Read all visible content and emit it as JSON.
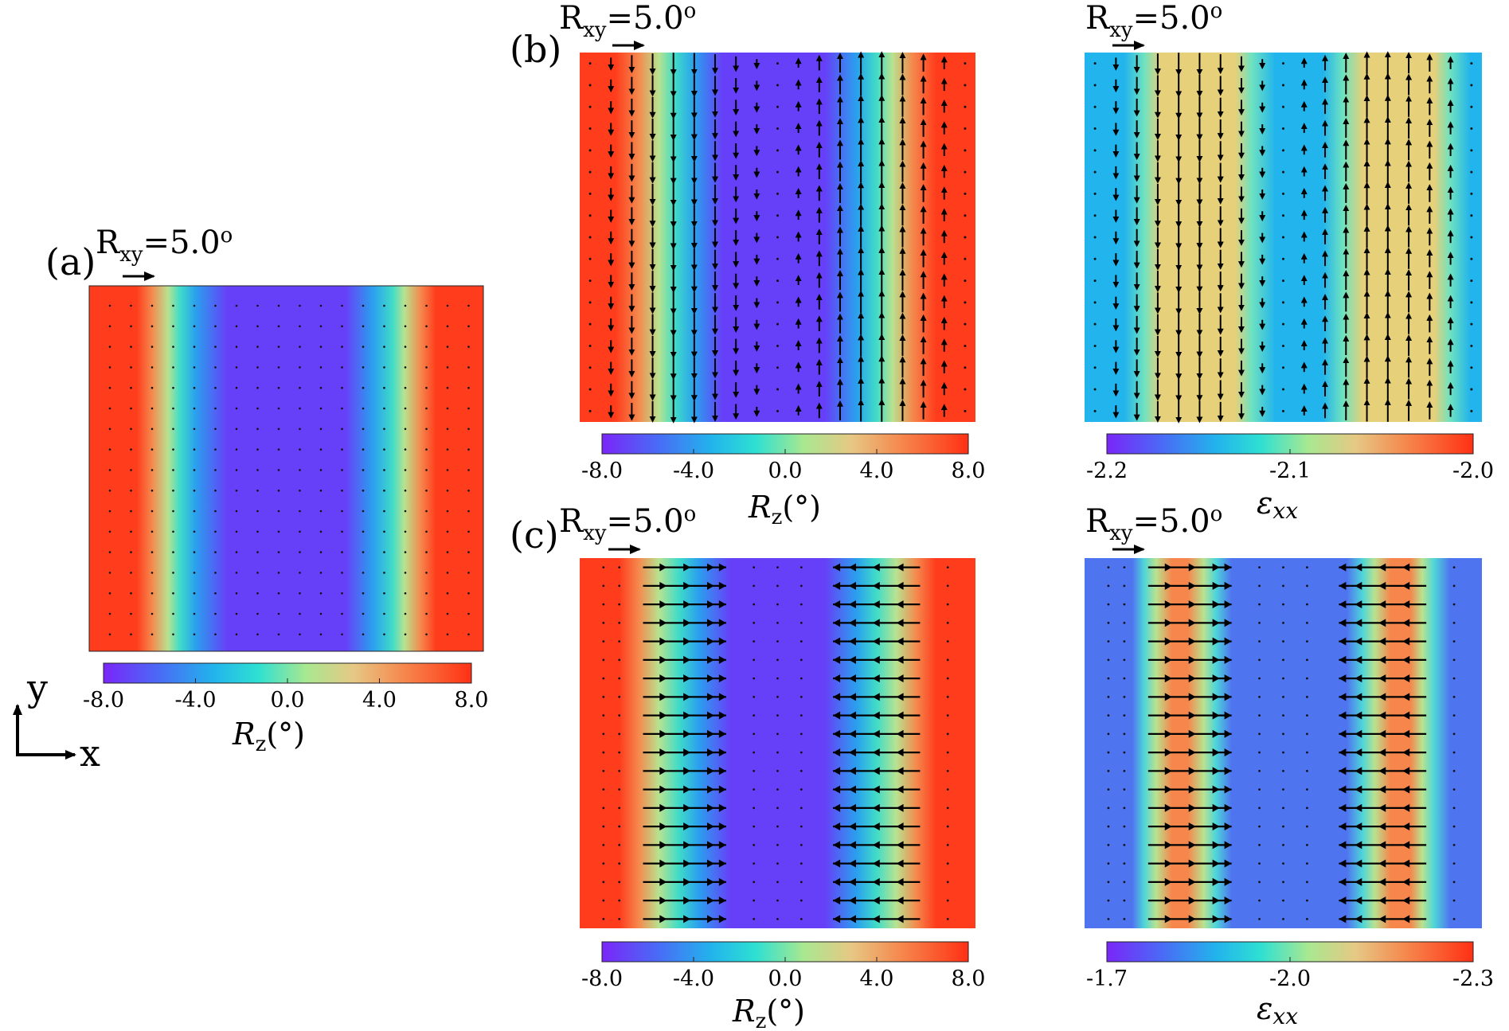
{
  "rotation_label": {
    "prefix": "R",
    "sub": "xy",
    "value": "=5.0",
    "sup": "o"
  },
  "panel_letters": {
    "a": "(a)",
    "b": "(b)",
    "c": "(c)"
  },
  "axes": {
    "y": "y",
    "x": "x"
  },
  "colorbars": {
    "rz_ticks": [
      "-8.0",
      "-4.0",
      "0.0",
      "4.0",
      "8.0"
    ],
    "rz_label": "Rz(°)",
    "exx_b_ticks": [
      "-2.2",
      "-2.1",
      "-2.0"
    ],
    "exx_c_ticks": [
      "-1.7",
      "-2.0",
      "-2.3"
    ],
    "exx_label": "εxx"
  },
  "colors": {
    "red": "#ff3c1c",
    "orange": "#f78a4a",
    "peach": "#f0ba86",
    "yellowgreen": "#a8e890",
    "cyan": "#44dcc8",
    "sky": "#22b4ec",
    "blue": "#3c8cf4",
    "purple": "#6640f8",
    "violet": "#7a26f8",
    "sand": "#e6d07a",
    "cornflower": "#4f74f0"
  },
  "chart_data": [
    {
      "type": "heatmap",
      "name": "panel-a",
      "field": "Rz",
      "units": "degrees",
      "range": [
        -8.0,
        8.0
      ],
      "profile_x": [
        0,
        0.12,
        0.2,
        0.26,
        0.35,
        0.65,
        0.74,
        0.8,
        0.88,
        1
      ],
      "profile_values": [
        8.0,
        8.0,
        2.5,
        -3.5,
        -8.0,
        -8.0,
        -3.5,
        2.5,
        8.0,
        8.0
      ],
      "vectors": "negligible (dots)"
    },
    {
      "type": "heatmap",
      "name": "panel-b-left",
      "field": "Rz",
      "units": "degrees",
      "range": [
        -8.0,
        8.0
      ],
      "profile_x": [
        0,
        0.1,
        0.2,
        0.27,
        0.36,
        0.62,
        0.71,
        0.79,
        0.88,
        1
      ],
      "profile_values": [
        8.0,
        8.0,
        2.5,
        -3.5,
        -8.0,
        -8.0,
        -3.5,
        2.5,
        8.0,
        8.0
      ],
      "vectors": "vertical; down on left half, up on right half"
    },
    {
      "type": "heatmap",
      "name": "panel-b-right",
      "field": "exx",
      "range": [
        -2.2,
        -2.0
      ],
      "profile_x": [
        0,
        0.1,
        0.16,
        0.19,
        0.38,
        0.42,
        0.48,
        0.6,
        0.66,
        0.7,
        0.88,
        0.92,
        1
      ],
      "profile_values": [
        -2.15,
        -2.15,
        -2.11,
        -2.07,
        -2.07,
        -2.11,
        -2.15,
        -2.15,
        -2.11,
        -2.07,
        -2.07,
        -2.11,
        -2.15
      ],
      "vectors": "vertical; down on left half, up on right half"
    },
    {
      "type": "heatmap",
      "name": "panel-c-left",
      "field": "Rz",
      "units": "degrees",
      "range": [
        -8.0,
        8.0
      ],
      "profile_x": [
        0,
        0.1,
        0.17,
        0.27,
        0.36,
        0.62,
        0.7,
        0.8,
        0.88,
        1
      ],
      "profile_values": [
        8.0,
        8.0,
        3.0,
        -3.5,
        -8.0,
        -8.0,
        -3.5,
        3.0,
        8.0,
        8.0
      ],
      "vectors": "horizontal; right on left band, left on right band"
    },
    {
      "type": "heatmap",
      "name": "panel-c-right",
      "field": "exx",
      "range": [
        -1.7,
        -2.3
      ],
      "profile_x": [
        0,
        0.1,
        0.17,
        0.22,
        0.27,
        0.36,
        0.65,
        0.72,
        0.77,
        0.82,
        0.88,
        1
      ],
      "profile_values": [
        -1.85,
        -1.85,
        -2.05,
        -2.25,
        -2.05,
        -1.85,
        -1.85,
        -2.05,
        -2.25,
        -2.05,
        -1.85,
        -1.85
      ],
      "vectors": "horizontal; right on left band, left on right band"
    }
  ]
}
